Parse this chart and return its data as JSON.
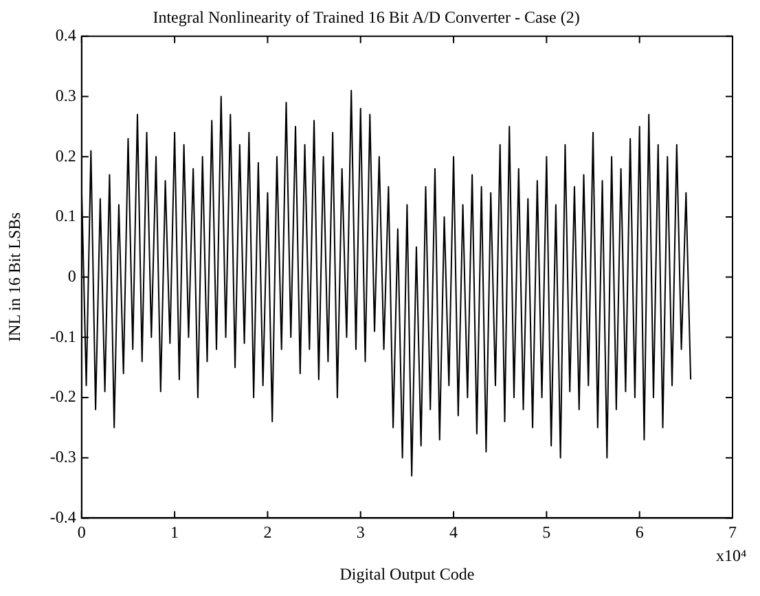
{
  "chart_data": {
    "type": "line",
    "title": "Integral Nonlinearity of Trained 16 Bit A/D Converter - Case (2)",
    "xlabel": "Digital Output Code",
    "ylabel": "INL in 16 Bit LSBs",
    "annotations": [
      "x10⁴"
    ],
    "x": [
      0,
      0.05,
      0.1,
      0.15,
      0.2,
      0.25,
      0.3,
      0.35,
      0.4,
      0.45,
      0.5,
      0.55,
      0.6,
      0.65,
      0.7,
      0.75,
      0.8,
      0.85,
      0.9,
      0.95,
      1,
      1.05,
      1.1,
      1.15,
      1.2,
      1.25,
      1.3,
      1.35,
      1.4,
      1.45,
      1.5,
      1.55,
      1.6,
      1.65,
      1.7,
      1.75,
      1.8,
      1.85,
      1.9,
      1.95,
      2,
      2.05,
      2.1,
      2.15,
      2.2,
      2.25,
      2.3,
      2.35,
      2.4,
      2.45,
      2.5,
      2.55,
      2.6,
      2.65,
      2.7,
      2.75,
      2.8,
      2.85,
      2.9,
      2.95,
      3,
      3.05,
      3.1,
      3.15,
      3.2,
      3.25,
      3.3,
      3.35,
      3.4,
      3.45,
      3.5,
      3.55,
      3.6,
      3.65,
      3.7,
      3.75,
      3.8,
      3.85,
      3.9,
      3.95,
      4,
      4.05,
      4.1,
      4.15,
      4.2,
      4.25,
      4.3,
      4.35,
      4.4,
      4.45,
      4.5,
      4.55,
      4.6,
      4.65,
      4.7,
      4.75,
      4.8,
      4.85,
      4.9,
      4.95,
      5,
      5.05,
      5.1,
      5.15,
      5.2,
      5.25,
      5.3,
      5.35,
      5.4,
      5.45,
      5.5,
      5.55,
      5.6,
      5.65,
      5.7,
      5.75,
      5.8,
      5.85,
      5.9,
      5.95,
      6,
      6.05,
      6.1,
      6.15,
      6.2,
      6.25,
      6.3,
      6.35,
      6.4,
      6.45,
      6.5,
      6.55
    ],
    "series": [
      {
        "color": "#000000",
        "values": [
          0.15,
          -0.18,
          0.21,
          -0.22,
          0.13,
          -0.19,
          0.17,
          -0.25,
          0.12,
          -0.16,
          0.23,
          -0.12,
          0.27,
          -0.14,
          0.24,
          -0.1,
          0.2,
          -0.19,
          0.16,
          -0.11,
          0.24,
          -0.17,
          0.22,
          -0.1,
          0.18,
          -0.2,
          0.2,
          -0.14,
          0.26,
          -0.12,
          0.3,
          -0.1,
          0.27,
          -0.15,
          0.22,
          -0.11,
          0.24,
          -0.2,
          0.19,
          -0.18,
          0.14,
          -0.24,
          0.2,
          -0.12,
          0.29,
          -0.1,
          0.25,
          -0.16,
          0.22,
          -0.12,
          0.26,
          -0.17,
          0.2,
          -0.14,
          0.24,
          -0.2,
          0.18,
          -0.1,
          0.31,
          -0.12,
          0.28,
          -0.14,
          0.27,
          -0.09,
          0.2,
          -0.12,
          0.15,
          -0.25,
          0.08,
          -0.3,
          0.12,
          -0.33,
          0.05,
          -0.28,
          0.15,
          -0.22,
          0.18,
          -0.27,
          0.1,
          -0.18,
          0.2,
          -0.23,
          0.12,
          -0.2,
          0.17,
          -0.26,
          0.15,
          -0.29,
          0.14,
          -0.18,
          0.22,
          -0.24,
          0.25,
          -0.2,
          0.18,
          -0.22,
          0.13,
          -0.25,
          0.16,
          -0.2,
          0.2,
          -0.28,
          0.12,
          -0.3,
          0.22,
          -0.19,
          0.15,
          -0.22,
          0.17,
          -0.18,
          0.24,
          -0.25,
          0.16,
          -0.3,
          0.2,
          -0.22,
          0.18,
          -0.19,
          0.23,
          -0.2,
          0.25,
          -0.27,
          0.27,
          -0.2,
          0.22,
          -0.25,
          0.2,
          -0.18,
          0.22,
          -0.12,
          0.14,
          -0.17
        ]
      }
    ],
    "xlim": [
      0,
      7
    ],
    "xticks": [
      0,
      1,
      2,
      3,
      4,
      5,
      6,
      7
    ],
    "ylim": [
      -0.4,
      0.4
    ],
    "yticks": [
      -0.4,
      -0.3,
      -0.2,
      -0.1,
      0,
      0.1,
      0.2,
      0.3,
      0.4
    ],
    "grid": false,
    "legend": false,
    "marker": "none",
    "line_style": "solid"
  }
}
